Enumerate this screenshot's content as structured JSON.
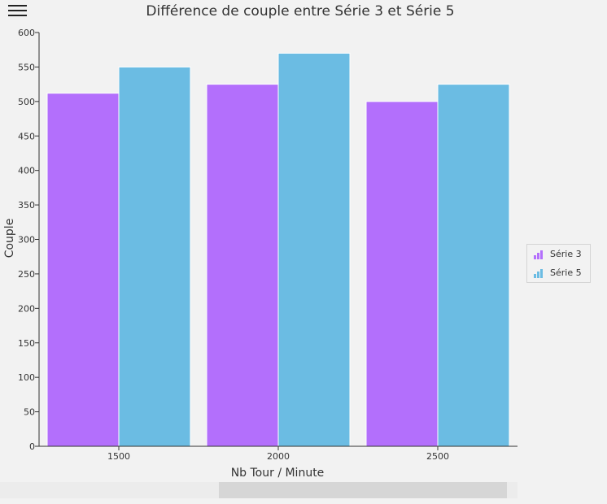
{
  "chart_data": {
    "type": "bar",
    "title": "Différence de couple entre Série 3 et Série 5",
    "xlabel": "Nb Tour / Minute",
    "ylabel": "Couple",
    "categories": [
      "1500",
      "2000",
      "2500"
    ],
    "series": [
      {
        "name": "Série 3",
        "color": "#b36ffc",
        "values": [
          512,
          525,
          500
        ]
      },
      {
        "name": "Série 5",
        "color": "#6bbce3",
        "values": [
          550,
          570,
          525
        ]
      }
    ],
    "ylim": [
      0,
      600
    ],
    "yticks": [
      0,
      50,
      100,
      150,
      200,
      250,
      300,
      350,
      400,
      450,
      500,
      550,
      600
    ],
    "grid": false,
    "legend_position": "right"
  },
  "icons": {
    "menu": "hamburger-menu-icon",
    "legend": "bar-chart-icon"
  }
}
